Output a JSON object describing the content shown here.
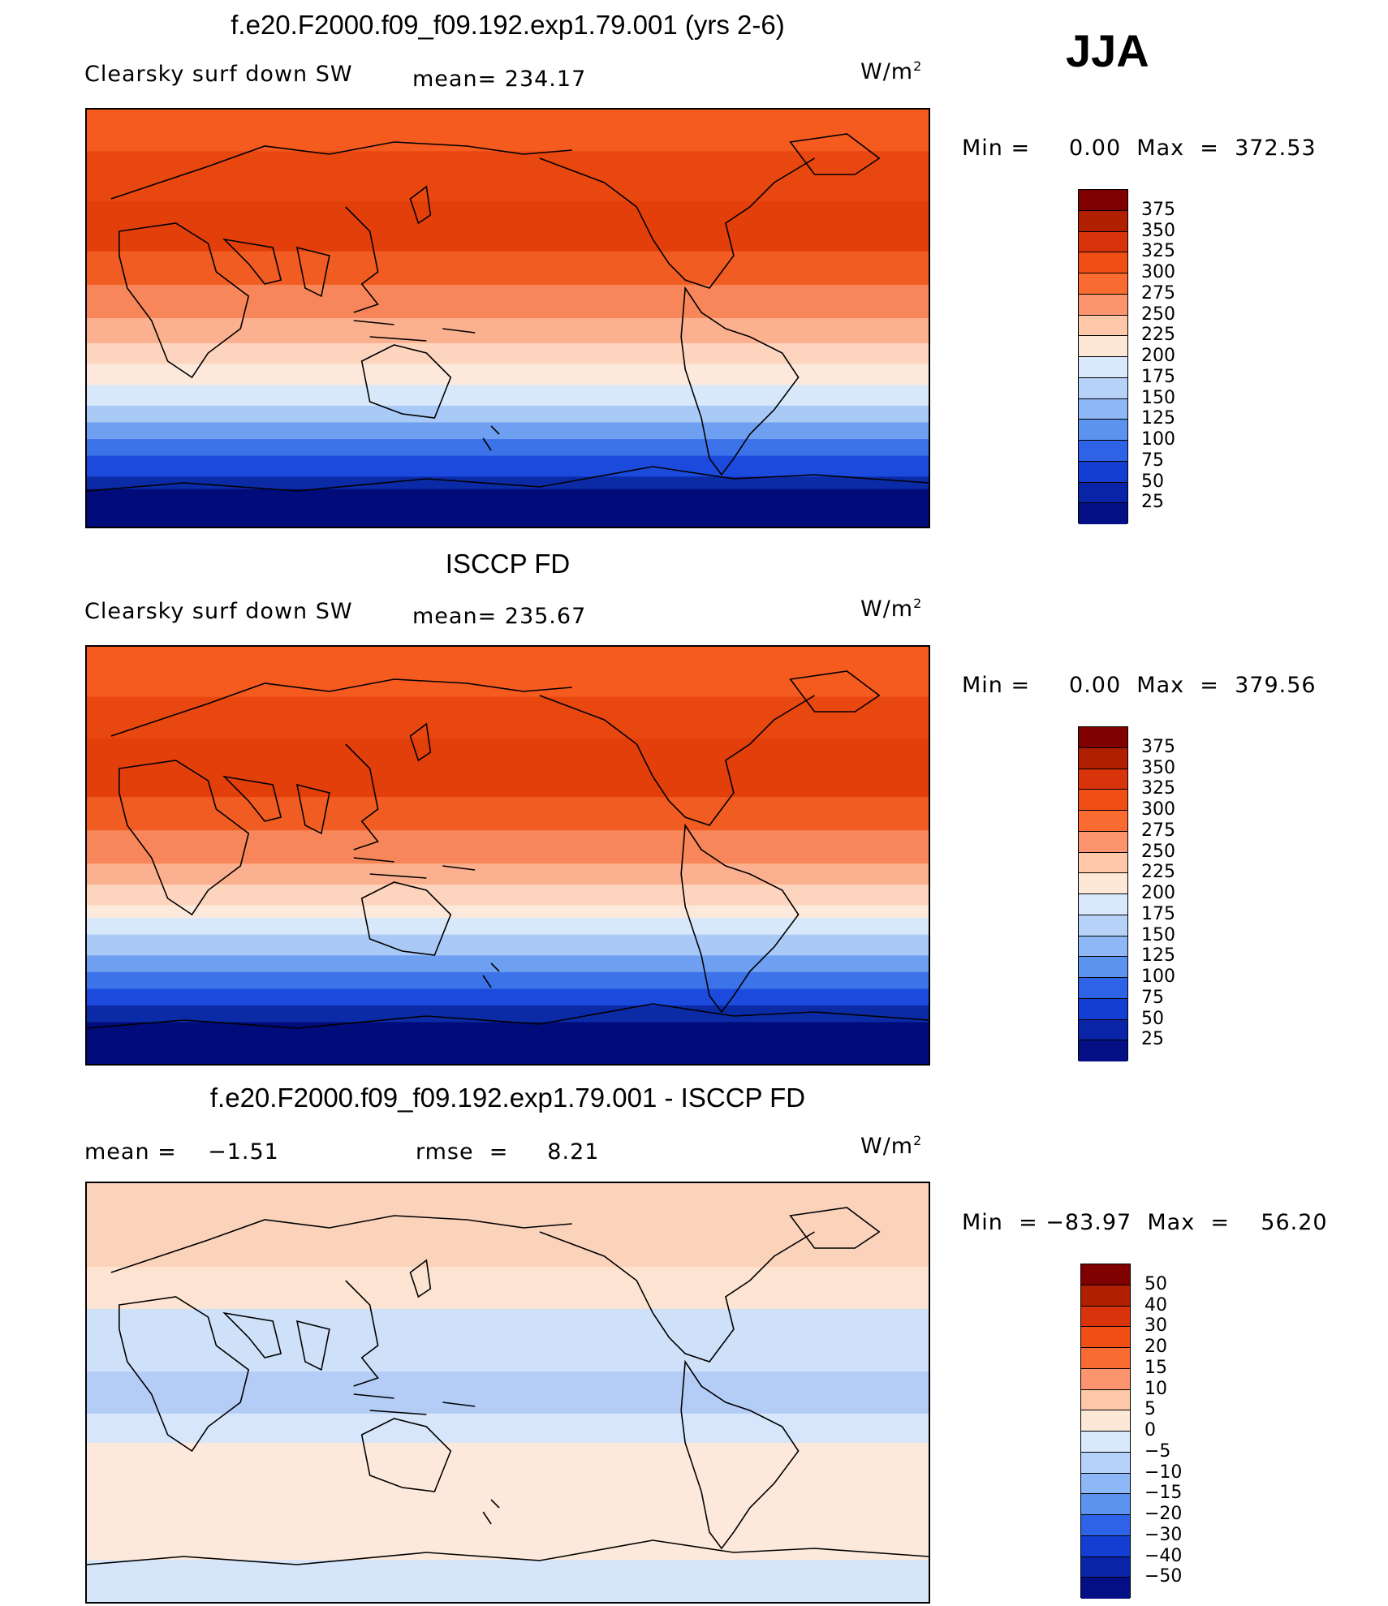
{
  "season": "JJA",
  "panels": [
    {
      "title": "f.e20.F2000.f09_f09.192.exp1.79.001 (yrs 2-6)",
      "variable": "Clearsky surf down SW",
      "stat1": "mean= 234.17",
      "stat2": "",
      "units_base": "W/m",
      "units_sup": "2",
      "minmax": "Min =     0.00  Max  =  372.53",
      "colorbar": {
        "labels": [
          "375",
          "350",
          "325",
          "300",
          "275",
          "250",
          "225",
          "200",
          "175",
          "150",
          "125",
          "100",
          "75",
          "50",
          "25"
        ],
        "colors": [
          "#7f0000",
          "#b01f00",
          "#d9330b",
          "#f04e15",
          "#fa6b32",
          "#fc9470",
          "#fdc8a9",
          "#fde8d8",
          "#d7e9fb",
          "#b7d2f8",
          "#8db7f5",
          "#5c93ef",
          "#2e63e8",
          "#143ed2",
          "#0a24a8",
          "#050f85"
        ]
      },
      "map": {
        "bands": [
          [
            "#f55a1f",
            0.1
          ],
          [
            "#e8470f",
            0.22
          ],
          [
            "#e23f0b",
            0.34
          ],
          [
            "#f05c21",
            0.42
          ],
          [
            "#f7875a",
            0.5
          ],
          [
            "#fbb08f",
            0.56
          ],
          [
            "#fdd5bf",
            0.61
          ],
          [
            "#fde9dc",
            0.66
          ],
          [
            "#d7e8fa",
            0.71
          ],
          [
            "#a9c9f6",
            0.75
          ],
          [
            "#6e9ff0",
            0.79
          ],
          [
            "#3d73e9",
            0.83
          ],
          [
            "#1c4adc",
            0.88
          ],
          [
            "#0b2aa6",
            0.91
          ],
          [
            "#020b7a",
            1.0
          ]
        ]
      }
    },
    {
      "title": "ISCCP FD",
      "variable": "Clearsky surf down SW",
      "stat1": "mean= 235.67",
      "stat2": "",
      "units_base": "W/m",
      "units_sup": "2",
      "minmax": "Min =     0.00  Max  =  379.56",
      "colorbar": {
        "labels": [
          "375",
          "350",
          "325",
          "300",
          "275",
          "250",
          "225",
          "200",
          "175",
          "150",
          "125",
          "100",
          "75",
          "50",
          "25"
        ],
        "colors": [
          "#7f0000",
          "#b01f00",
          "#d9330b",
          "#f04e15",
          "#fa6b32",
          "#fc9470",
          "#fdc8a9",
          "#fde8d8",
          "#d7e9fb",
          "#b7d2f8",
          "#8db7f5",
          "#5c93ef",
          "#2e63e8",
          "#143ed2",
          "#0a24a8",
          "#050f85"
        ]
      },
      "map": {
        "bands": [
          [
            "#f55a1f",
            0.12
          ],
          [
            "#e8470f",
            0.22
          ],
          [
            "#e23f0b",
            0.36
          ],
          [
            "#f05c21",
            0.44
          ],
          [
            "#f7875a",
            0.52
          ],
          [
            "#fbb08f",
            0.57
          ],
          [
            "#fdd5bf",
            0.62
          ],
          [
            "#fde9dc",
            0.65
          ],
          [
            "#d7e8fa",
            0.69
          ],
          [
            "#a9c9f6",
            0.74
          ],
          [
            "#6e9ff0",
            0.78
          ],
          [
            "#3d73e9",
            0.82
          ],
          [
            "#1c4adc",
            0.86
          ],
          [
            "#0b2aa6",
            0.9
          ],
          [
            "#020b7a",
            1.0
          ]
        ]
      }
    },
    {
      "title": "f.e20.F2000.f09_f09.192.exp1.79.001 - ISCCP FD",
      "variable": "mean =    −1.51",
      "stat1": "",
      "stat2": "rmse  =     8.21",
      "units_base": "W/m",
      "units_sup": "2",
      "minmax": "Min  = −83.97  Max  =    56.20",
      "colorbar": {
        "labels": [
          "50",
          "40",
          "30",
          "20",
          "15",
          "10",
          "5",
          "0",
          "−5",
          "−10",
          "−15",
          "−20",
          "−30",
          "−40",
          "−50"
        ],
        "colors": [
          "#7f0000",
          "#b01f00",
          "#d9330b",
          "#f04e15",
          "#fa6b32",
          "#fc9470",
          "#fdc8a9",
          "#fde8d8",
          "#d7e9fb",
          "#b7d2f8",
          "#8db7f5",
          "#5c93ef",
          "#2e63e8",
          "#143ed2",
          "#0a24a8",
          "#050f85"
        ]
      },
      "map": {
        "bands": [
          [
            "#fbd3bb",
            0.2
          ],
          [
            "#fde4d2",
            0.3
          ],
          [
            "#cfe0f9",
            0.45
          ],
          [
            "#b3cdf7",
            0.55
          ],
          [
            "#d7e6fa",
            0.62
          ],
          [
            "#fde9dc",
            0.9
          ],
          [
            "#d5e5fa",
            1.0
          ]
        ]
      }
    }
  ]
}
